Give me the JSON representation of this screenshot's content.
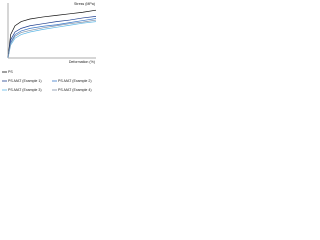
{
  "chart_data": {
    "type": "line",
    "ylabel": "Stress (MPa)",
    "xlabel": "Deformation (%)",
    "x": [
      0,
      3,
      8,
      15,
      25,
      40,
      55,
      70,
      85,
      100
    ],
    "series": [
      {
        "name": "PS",
        "color": "#111111",
        "values": [
          0,
          0.45,
          0.62,
          0.7,
          0.75,
          0.79,
          0.82,
          0.85,
          0.88,
          0.92
        ]
      },
      {
        "name": "PS-MAT (Example 1)",
        "color": "#1f3f8f",
        "values": [
          0,
          0.35,
          0.5,
          0.57,
          0.62,
          0.66,
          0.7,
          0.73,
          0.77,
          0.8
        ]
      },
      {
        "name": "PS-MAT (Example 2)",
        "color": "#3a78c9",
        "values": [
          0,
          0.3,
          0.45,
          0.52,
          0.57,
          0.61,
          0.64,
          0.68,
          0.72,
          0.76
        ]
      },
      {
        "name": "PS-MAT (Example 3)",
        "color": "#5fb8e6",
        "values": [
          0,
          0.25,
          0.38,
          0.45,
          0.5,
          0.55,
          0.59,
          0.63,
          0.67,
          0.7
        ]
      },
      {
        "name": "PS-MAT (Example 4)",
        "color": "#7f8fa6",
        "values": [
          0,
          0.28,
          0.42,
          0.49,
          0.53,
          0.58,
          0.62,
          0.66,
          0.69,
          0.73
        ]
      }
    ],
    "xlim": [
      0,
      100
    ],
    "ylim": [
      0,
      1
    ]
  }
}
